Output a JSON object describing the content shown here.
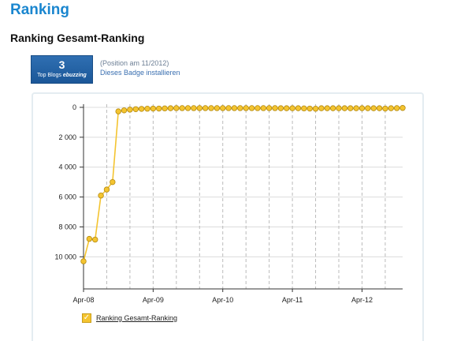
{
  "page": {
    "title": "Ranking",
    "section_title": "Ranking Gesamt-Ranking"
  },
  "badge": {
    "rank": "3",
    "label_prefix": "Top Blogs",
    "label_brand": "ebuzzing",
    "position_text": "(Position am 11/2012)",
    "install_link": "Dieses Badge installieren"
  },
  "chart_data": {
    "type": "line",
    "y_inverted": true,
    "ylim": [
      0,
      11000
    ],
    "yticks": [
      0,
      2000,
      4000,
      6000,
      8000,
      10000
    ],
    "ytick_labels": [
      "0",
      "2 000",
      "4 000",
      "6 000",
      "8 000",
      "10 000"
    ],
    "xtick_labels": [
      "Apr-08",
      "Apr-09",
      "Apr-10",
      "Apr-11",
      "Apr-12"
    ],
    "xtick_months": [
      0,
      12,
      24,
      36,
      48
    ],
    "grid": "horizontal solid, vertical dashed every 4 months",
    "series": [
      {
        "name": "Ranking Gesamt-Ranking",
        "color": "#f4c430",
        "points": [
          [
            0,
            10300
          ],
          [
            1,
            8800
          ],
          [
            2,
            8850
          ],
          [
            3,
            5900
          ],
          [
            4,
            5500
          ],
          [
            5,
            5000
          ],
          [
            6,
            270
          ],
          [
            7,
            200
          ],
          [
            8,
            150
          ],
          [
            9,
            120
          ],
          [
            10,
            100
          ],
          [
            11,
            90
          ],
          [
            12,
            80
          ],
          [
            13,
            80
          ],
          [
            14,
            70
          ],
          [
            15,
            60
          ],
          [
            16,
            50
          ],
          [
            17,
            50
          ],
          [
            18,
            50
          ],
          [
            19,
            50
          ],
          [
            20,
            50
          ],
          [
            21,
            50
          ],
          [
            22,
            50
          ],
          [
            23,
            50
          ],
          [
            24,
            50
          ],
          [
            25,
            50
          ],
          [
            26,
            50
          ],
          [
            27,
            50
          ],
          [
            28,
            50
          ],
          [
            29,
            50
          ],
          [
            30,
            50
          ],
          [
            31,
            50
          ],
          [
            32,
            50
          ],
          [
            33,
            50
          ],
          [
            34,
            60
          ],
          [
            35,
            60
          ],
          [
            36,
            60
          ],
          [
            37,
            60
          ],
          [
            38,
            70
          ],
          [
            39,
            80
          ],
          [
            40,
            90
          ],
          [
            41,
            60
          ],
          [
            42,
            60
          ],
          [
            43,
            60
          ],
          [
            44,
            60
          ],
          [
            45,
            60
          ],
          [
            46,
            60
          ],
          [
            47,
            60
          ],
          [
            48,
            60
          ],
          [
            49,
            60
          ],
          [
            50,
            60
          ],
          [
            51,
            60
          ],
          [
            52,
            80
          ],
          [
            53,
            60
          ],
          [
            54,
            50
          ],
          [
            55,
            40
          ]
        ]
      }
    ]
  },
  "legend": {
    "label": "Ranking Gesamt-Ranking",
    "check": "✓"
  }
}
